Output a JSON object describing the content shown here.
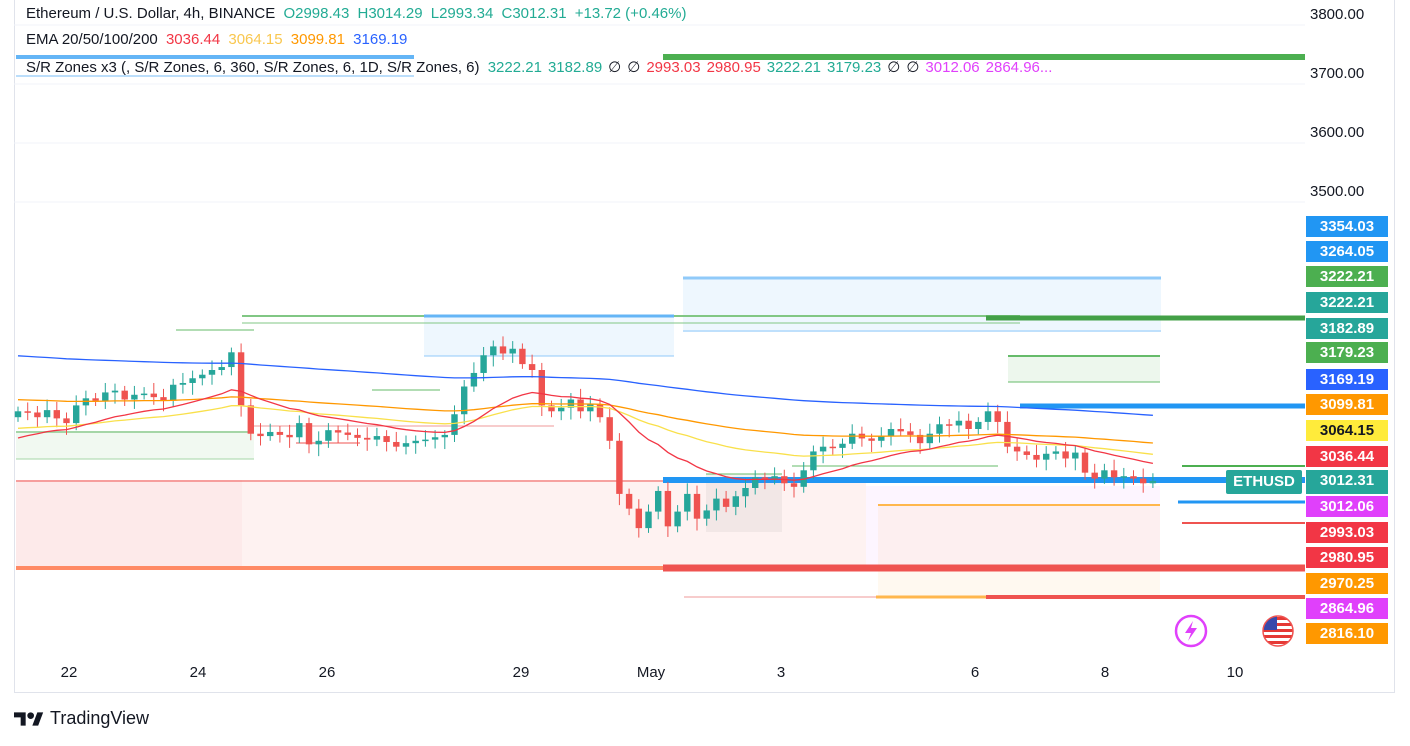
{
  "header": {
    "symbol": "Ethereum / U.S. Dollar, 4h, BINANCE",
    "open": "O2998.43",
    "high": "H3014.29",
    "low": "L2993.34",
    "close": "C3012.31",
    "change": "+13.72 (+0.46%)"
  },
  "ema_legend": {
    "label": "EMA 20/50/100/200",
    "v20": "3036.44",
    "v50": "3064.15",
    "v100": "3099.81",
    "v200": "3169.19"
  },
  "sr_legend": {
    "label": "S/R Zones x3 (, S/R Zones, 6, 360, S/R Zones, 6, 1D, S/R Zones, 6)",
    "values": [
      {
        "text": "3222.21",
        "color": "#22ab94"
      },
      {
        "text": "3182.89",
        "color": "#22ab94"
      },
      {
        "text": "∅",
        "color": "#131722"
      },
      {
        "text": "∅",
        "color": "#131722"
      },
      {
        "text": "2993.03",
        "color": "#f23645"
      },
      {
        "text": "2980.95",
        "color": "#f23645"
      },
      {
        "text": "3222.21",
        "color": "#22ab94"
      },
      {
        "text": "3179.23",
        "color": "#22ab94"
      },
      {
        "text": "∅",
        "color": "#131722"
      },
      {
        "text": "∅",
        "color": "#131722"
      },
      {
        "text": "3012.06",
        "color": "#e040fb"
      },
      {
        "text": "2864.96...",
        "color": "#e040fb"
      }
    ]
  },
  "symbol_tag": "ETHUSD",
  "brand": "TradingView",
  "colors": {
    "up": "#26a69a",
    "down": "#ef5350",
    "ema20": "#f23645",
    "ema50": "#ffeb3b",
    "ema100": "#ff9800",
    "ema200": "#2962ff"
  },
  "chart_data": {
    "type": "candlestick",
    "instrument": "ETHUSD",
    "interval": "4h",
    "y_axis_labels": [
      "3800.00",
      "3700.00",
      "3600.00",
      "3500.00"
    ],
    "x_axis_labels": [
      "22",
      "24",
      "26",
      "29",
      "May",
      "3",
      "6",
      "8",
      "10"
    ],
    "price_tags": [
      {
        "text": "3354.03",
        "color": "#2196f3"
      },
      {
        "text": "3264.05",
        "color": "#2196f3"
      },
      {
        "text": "3222.21",
        "color": "#4caf50"
      },
      {
        "text": "3222.21",
        "color": "#26a69a"
      },
      {
        "text": "3182.89",
        "color": "#26a69a"
      },
      {
        "text": "3179.23",
        "color": "#4caf50"
      },
      {
        "text": "3169.19",
        "color": "#2962ff"
      },
      {
        "text": "3099.81",
        "color": "#ff9800"
      },
      {
        "text": "3064.15",
        "color": "#ffeb3b"
      },
      {
        "text": "3036.44",
        "color": "#f23645"
      },
      {
        "text": "3012.31",
        "color": "#26a69a"
      },
      {
        "text": "3012.06",
        "color": "#e040fb"
      },
      {
        "text": "2993.03",
        "color": "#f23645"
      },
      {
        "text": "2980.95",
        "color": "#f23645"
      },
      {
        "text": "2970.25",
        "color": "#ff9800"
      },
      {
        "text": "2864.96",
        "color": "#e040fb"
      },
      {
        "text": "2816.10",
        "color": "#ff9800"
      }
    ],
    "candles_close": [
      3130,
      3128,
      3120,
      3132,
      3118,
      3110,
      3140,
      3152,
      3148,
      3162,
      3165,
      3150,
      3158,
      3160,
      3154,
      3148,
      3175,
      3178,
      3186,
      3192,
      3200,
      3205,
      3230,
      3140,
      3092,
      3088,
      3095,
      3090,
      3086,
      3110,
      3074,
      3080,
      3098,
      3094,
      3090,
      3085,
      3082,
      3088,
      3078,
      3070,
      3076,
      3080,
      3082,
      3086,
      3090,
      3125,
      3172,
      3195,
      3225,
      3240,
      3228,
      3236,
      3210,
      3200,
      3140,
      3130,
      3136,
      3150,
      3130,
      3142,
      3120,
      3080,
      2990,
      2965,
      2932,
      2960,
      2995,
      2935,
      2960,
      2990,
      2948,
      2962,
      2982,
      2968,
      2986,
      3000,
      3018,
      3014,
      3020,
      3008,
      3002,
      3030,
      3062,
      3070,
      3068,
      3075,
      3092,
      3084,
      3080,
      3088,
      3100,
      3096,
      3090,
      3076,
      3092,
      3108,
      3106,
      3114,
      3100,
      3112,
      3130,
      3112,
      3070,
      3062,
      3056,
      3048,
      3058,
      3062,
      3050,
      3060,
      3026,
      3016,
      3030,
      3018,
      3020,
      3016,
      3008,
      3012
    ],
    "ema20_last": 3036.44,
    "ema50_last": 3064.15,
    "ema100_last": 3099.81,
    "ema200_last": 3169.19
  }
}
